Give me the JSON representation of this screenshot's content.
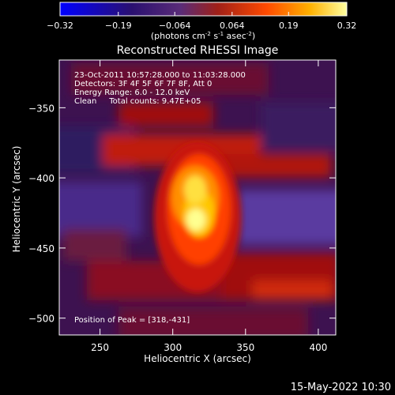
{
  "chart_data": {
    "type": "heatmap",
    "title": "Reconstructed RHESSI Image",
    "xlabel": "Heliocentric X (arcsec)",
    "ylabel": "Heliocentric Y (arcsec)",
    "xlim": [
      222,
      412
    ],
    "ylim": [
      -512,
      -316
    ],
    "xticks": [
      250,
      300,
      350,
      400
    ],
    "yticks": [
      -350,
      -400,
      -450,
      -500
    ],
    "colorbar": {
      "ticks": [
        "-0.32",
        "-0.19",
        "-0.064",
        "0.064",
        "0.19",
        "0.32"
      ],
      "min": -0.32,
      "max": 0.32,
      "units_text": "(photons cm",
      "units_exp1": "-2",
      "units_mid": " s",
      "units_exp2": "-1",
      "units_mid2": " asec",
      "units_exp3": "-2",
      "units_end": ")"
    },
    "info": {
      "line1": "23-Oct-2011 10:57:28.000 to 11:03:28.000",
      "line2": "Detectors: 3F 4F 5F 6F 7F 8F, Att 0",
      "line3": "Energy Range: 6.0 - 12.0 keV",
      "line4": "Clean     Total counts: 9.47E+05"
    },
    "peak_label": "Position of Peak = [318,-431]",
    "peak": [
      318,
      -431
    ],
    "timestamp": "15-May-2022 10:30"
  },
  "colors": {
    "background": "#000000",
    "foreground": "#ffffff",
    "colormap": [
      "#0000ff",
      "#3a1a9a",
      "#6a2a8a",
      "#b02020",
      "#ff5a00",
      "#ffb000",
      "#ffff80"
    ]
  }
}
